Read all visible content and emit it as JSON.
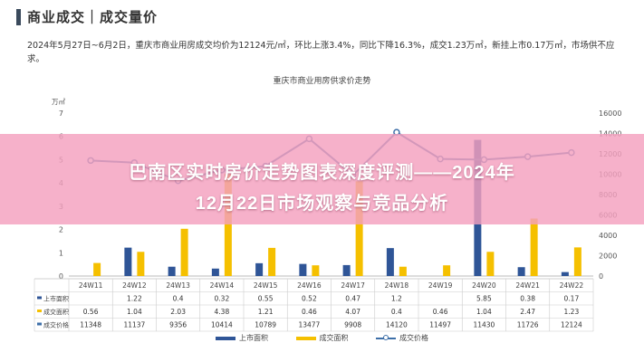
{
  "header": {
    "title": "商业成交｜成交量价"
  },
  "summary": "2024年5月27日~6月2日，重庆市商业用房成交均价为12124元/㎡，环比上涨3.4%，同比下降16.3%，成交1.23万㎡，新挂上市0.17万㎡，市场供不应求。",
  "banner": {
    "line1": "巴南区实时房价走势图表深度评测——2024年",
    "line2": "12月22日市场观察与竞品分析"
  },
  "chart_data": {
    "type": "bar",
    "title": "重庆市商业用房供求价走势",
    "left_unit": "万㎡",
    "categories": [
      "24W11",
      "24W12",
      "24W13",
      "24W14",
      "24W15",
      "24W16",
      "24W17",
      "24W18",
      "24W19",
      "24W20",
      "24W21",
      "24W22"
    ],
    "series": [
      {
        "name": "上市面积",
        "type": "bar",
        "axis": "left",
        "color": "#2f5597",
        "values": [
          null,
          1.22,
          0.4,
          0.32,
          0.55,
          0.52,
          0.47,
          1.2,
          null,
          5.85,
          0.38,
          0.17
        ]
      },
      {
        "name": "成交面积",
        "type": "bar",
        "axis": "left",
        "color": "#f5c000",
        "values": [
          0.56,
          1.04,
          2.03,
          4.38,
          1.21,
          0.46,
          4.07,
          0.4,
          0.46,
          1.04,
          2.47,
          1.23
        ]
      },
      {
        "name": "成交价格",
        "type": "line",
        "axis": "right",
        "color": "#3d6fa8",
        "values": [
          11348,
          11137,
          9356,
          10414,
          10789,
          13477,
          9908,
          14120,
          11497,
          11430,
          11726,
          12124
        ]
      }
    ],
    "table_rows": [
      {
        "label": "上市面积",
        "cells": [
          "",
          "1.22",
          "0.4",
          "0.32",
          "0.55",
          "0.52",
          "0.47",
          "1.2",
          "",
          "5.85",
          "0.38",
          "0.17"
        ]
      },
      {
        "label": "成交面积",
        "cells": [
          "0.56",
          "1.04",
          "2.03",
          "4.38",
          "1.21",
          "0.46",
          "4.07",
          "0.4",
          "0.46",
          "1.04",
          "2.47",
          "1.23"
        ]
      },
      {
        "label": "成交价格",
        "cells": [
          "11348",
          "11137",
          "9356",
          "10414",
          "10789",
          "13477",
          "9908",
          "14120",
          "11497",
          "11430",
          "11726",
          "12124"
        ]
      }
    ],
    "left_ticks": [
      "0",
      "1",
      "2",
      "3",
      "4",
      "5",
      "6",
      "7"
    ],
    "right_ticks": [
      "0",
      "2000",
      "4000",
      "6000",
      "8000",
      "10000",
      "12000",
      "14000",
      "16000"
    ],
    "ylim_left": [
      0,
      7
    ],
    "ylim_right": [
      0,
      16000
    ],
    "legend": [
      "上市面积",
      "成交面积",
      "成交价格"
    ],
    "legend_placement": "bottom-center",
    "grid": false
  }
}
